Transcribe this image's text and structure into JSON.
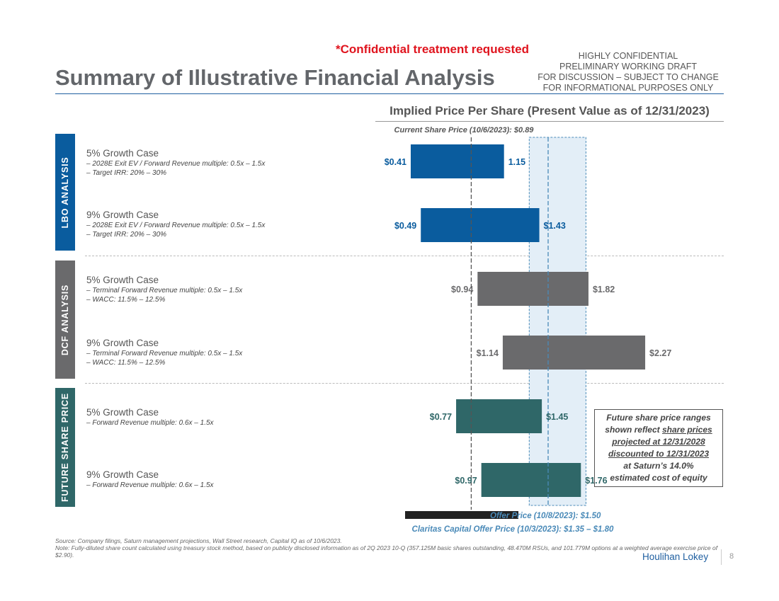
{
  "header": {
    "title": "Summary of Illustrative Financial Analysis",
    "confidential": "*Confidential treatment requested",
    "disclaimer": [
      "HIGHLY CONFIDENTIAL",
      "PRELIMINARY WORKING DRAFT",
      "FOR DISCUSSION – SUBJECT TO CHANGE",
      "FOR INFORMATIONAL PURPOSES ONLY"
    ]
  },
  "sections": [
    {
      "label": "LBO ANALYSIS",
      "color": "#0a5c9e",
      "cases": [
        {
          "title": "5% Growth Case",
          "bullets": [
            "–   2028E Exit EV / Forward Revenue multiple: 0.5x – 1.5x",
            "–   Target IRR: 20% – 30%"
          ]
        },
        {
          "title": "9% Growth Case",
          "bullets": [
            "–   2028E Exit EV / Forward Revenue multiple: 0.5x – 1.5x",
            "–   Target IRR: 20% – 30%"
          ]
        }
      ]
    },
    {
      "label": "DCF ANALYSIS",
      "color": "#6a6a6c",
      "cases": [
        {
          "title": "5% Growth Case",
          "bullets": [
            "–   Terminal Forward Revenue multiple: 0.5x – 1.5x",
            "–   WACC: 11.5% – 12.5%"
          ]
        },
        {
          "title": "9% Growth Case",
          "bullets": [
            "–   Terminal Forward Revenue multiple: 0.5x – 1.5x",
            "–   WACC: 11.5% – 12.5%"
          ]
        }
      ]
    },
    {
      "label": "FUTURE SHARE PRICE",
      "color": "#2f6768",
      "cases": [
        {
          "title": "5% Growth Case",
          "bullets": [
            "–   Forward Revenue multiple: 0.6x – 1.5x"
          ]
        },
        {
          "title": "9% Growth Case",
          "bullets": [
            "–   Forward Revenue multiple: 0.6x – 1.5x"
          ]
        }
      ]
    }
  ],
  "chart_data": {
    "type": "bar",
    "orientation": "horizontal-range",
    "title": "Implied Price Per Share (Present Value as of 12/31/2023)",
    "x_range": [
      0,
      3
    ],
    "series": [
      {
        "name": "LBO 5% Growth Case",
        "low": 0.41,
        "high": 1.15,
        "low_label": "$0.41",
        "high_label": "1.15",
        "color": "#0a5c9e"
      },
      {
        "name": "LBO 9% Growth Case",
        "low": 0.49,
        "high": 1.43,
        "low_label": "$0.49",
        "high_label": "$1.43",
        "color": "#0a5c9e"
      },
      {
        "name": "DCF 5% Growth Case",
        "low": 0.94,
        "high": 1.82,
        "low_label": "$0.94",
        "high_label": "$1.82",
        "color": "#6a6a6c"
      },
      {
        "name": "DCF 9% Growth Case",
        "low": 1.14,
        "high": 2.27,
        "low_label": "$1.14",
        "high_label": "$2.27",
        "color": "#6a6a6c"
      },
      {
        "name": "Future Share Price 5% Growth Case",
        "low": 0.77,
        "high": 1.45,
        "low_label": "$0.77",
        "high_label": "$1.45",
        "color": "#2f6768"
      },
      {
        "name": "Future Share Price 9% Growth Case",
        "low": 0.97,
        "high": 1.76,
        "low_label": "$0.97",
        "high_label": "$1.76",
        "color": "#2f6768"
      }
    ],
    "reference_lines": [
      {
        "name": "current",
        "value": 0.89,
        "label": "Current Share Price (10/6/2023): $0.89",
        "color": "#555555"
      },
      {
        "name": "offer",
        "value": 1.5,
        "label": "Offer Price (10/8/2023): $1.50",
        "color": "#4a8ab8"
      }
    ],
    "reference_band": {
      "low": 1.35,
      "high": 1.8,
      "label": "Claritas Capital Offer Price (10/3/2023): $1.35 – $1.80",
      "color": "#4a8ab8"
    },
    "legend_bar_color": "#222222"
  },
  "callout": {
    "line1": "Future share price ranges",
    "line2_plain": "shown reflect ",
    "line2_underlined": "share prices",
    "line3": "projected at 12/31/2028",
    "line4": "discounted to 12/31/2023",
    "line5": "at Saturn’s 14.0%",
    "line6": "estimated cost of equity"
  },
  "footer": {
    "source": "Source: Company filings, Saturn management projections, Wall Street research, Capital IQ as of 10/6/2023.",
    "note": "Note: Fully-diluted share count calculated using treasury stock method, based on publicly disclosed information as of 2Q 2023 10-Q (357.125M basic shares outstanding, 48.470M RSUs, and 101.779M options at a weighted average exercise price of $2.90).",
    "brand": "Houlihan Lokey",
    "page": "8"
  }
}
